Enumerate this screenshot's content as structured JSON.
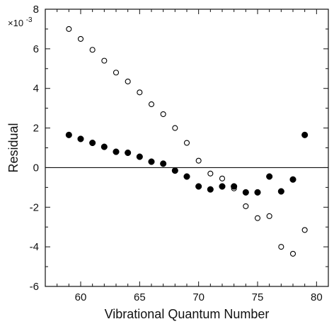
{
  "chart_data": {
    "type": "scatter",
    "title": "",
    "xlabel": "Vibrational Quantum Number",
    "ylabel": "Residual",
    "y_multiplier": "×10",
    "y_multiplier_exponent": "-3",
    "xlim": [
      57,
      81
    ],
    "ylim": [
      -6,
      8
    ],
    "xticks": [
      60,
      65,
      70,
      75,
      80
    ],
    "yticks": [
      -6,
      -4,
      -2,
      0,
      2,
      4,
      6,
      8
    ],
    "zero_line": true,
    "grid": false,
    "legend": "none",
    "series": [
      {
        "marker": "open-circle",
        "x": [
          59,
          60,
          61,
          62,
          63,
          64,
          65,
          66,
          67,
          68,
          69,
          70,
          71,
          72,
          73,
          74,
          75,
          76,
          77,
          78,
          79
        ],
        "y": [
          7.0,
          6.5,
          5.95,
          5.4,
          4.8,
          4.35,
          3.8,
          3.2,
          2.7,
          2.0,
          1.25,
          0.35,
          -0.3,
          -0.55,
          -1.05,
          -1.95,
          -2.55,
          -2.45,
          -4.0,
          -4.35,
          -3.15
        ]
      },
      {
        "marker": "filled-circle",
        "x": [
          59,
          60,
          61,
          62,
          63,
          64,
          65,
          66,
          67,
          68,
          69,
          70,
          71,
          72,
          73,
          74,
          75,
          76,
          77,
          78,
          79
        ],
        "y": [
          1.65,
          1.45,
          1.25,
          1.05,
          0.8,
          0.75,
          0.55,
          0.3,
          0.2,
          -0.15,
          -0.45,
          -0.95,
          -1.1,
          -0.95,
          -0.95,
          -1.25,
          -1.25,
          -0.45,
          -1.2,
          -0.6,
          1.65
        ]
      }
    ]
  }
}
